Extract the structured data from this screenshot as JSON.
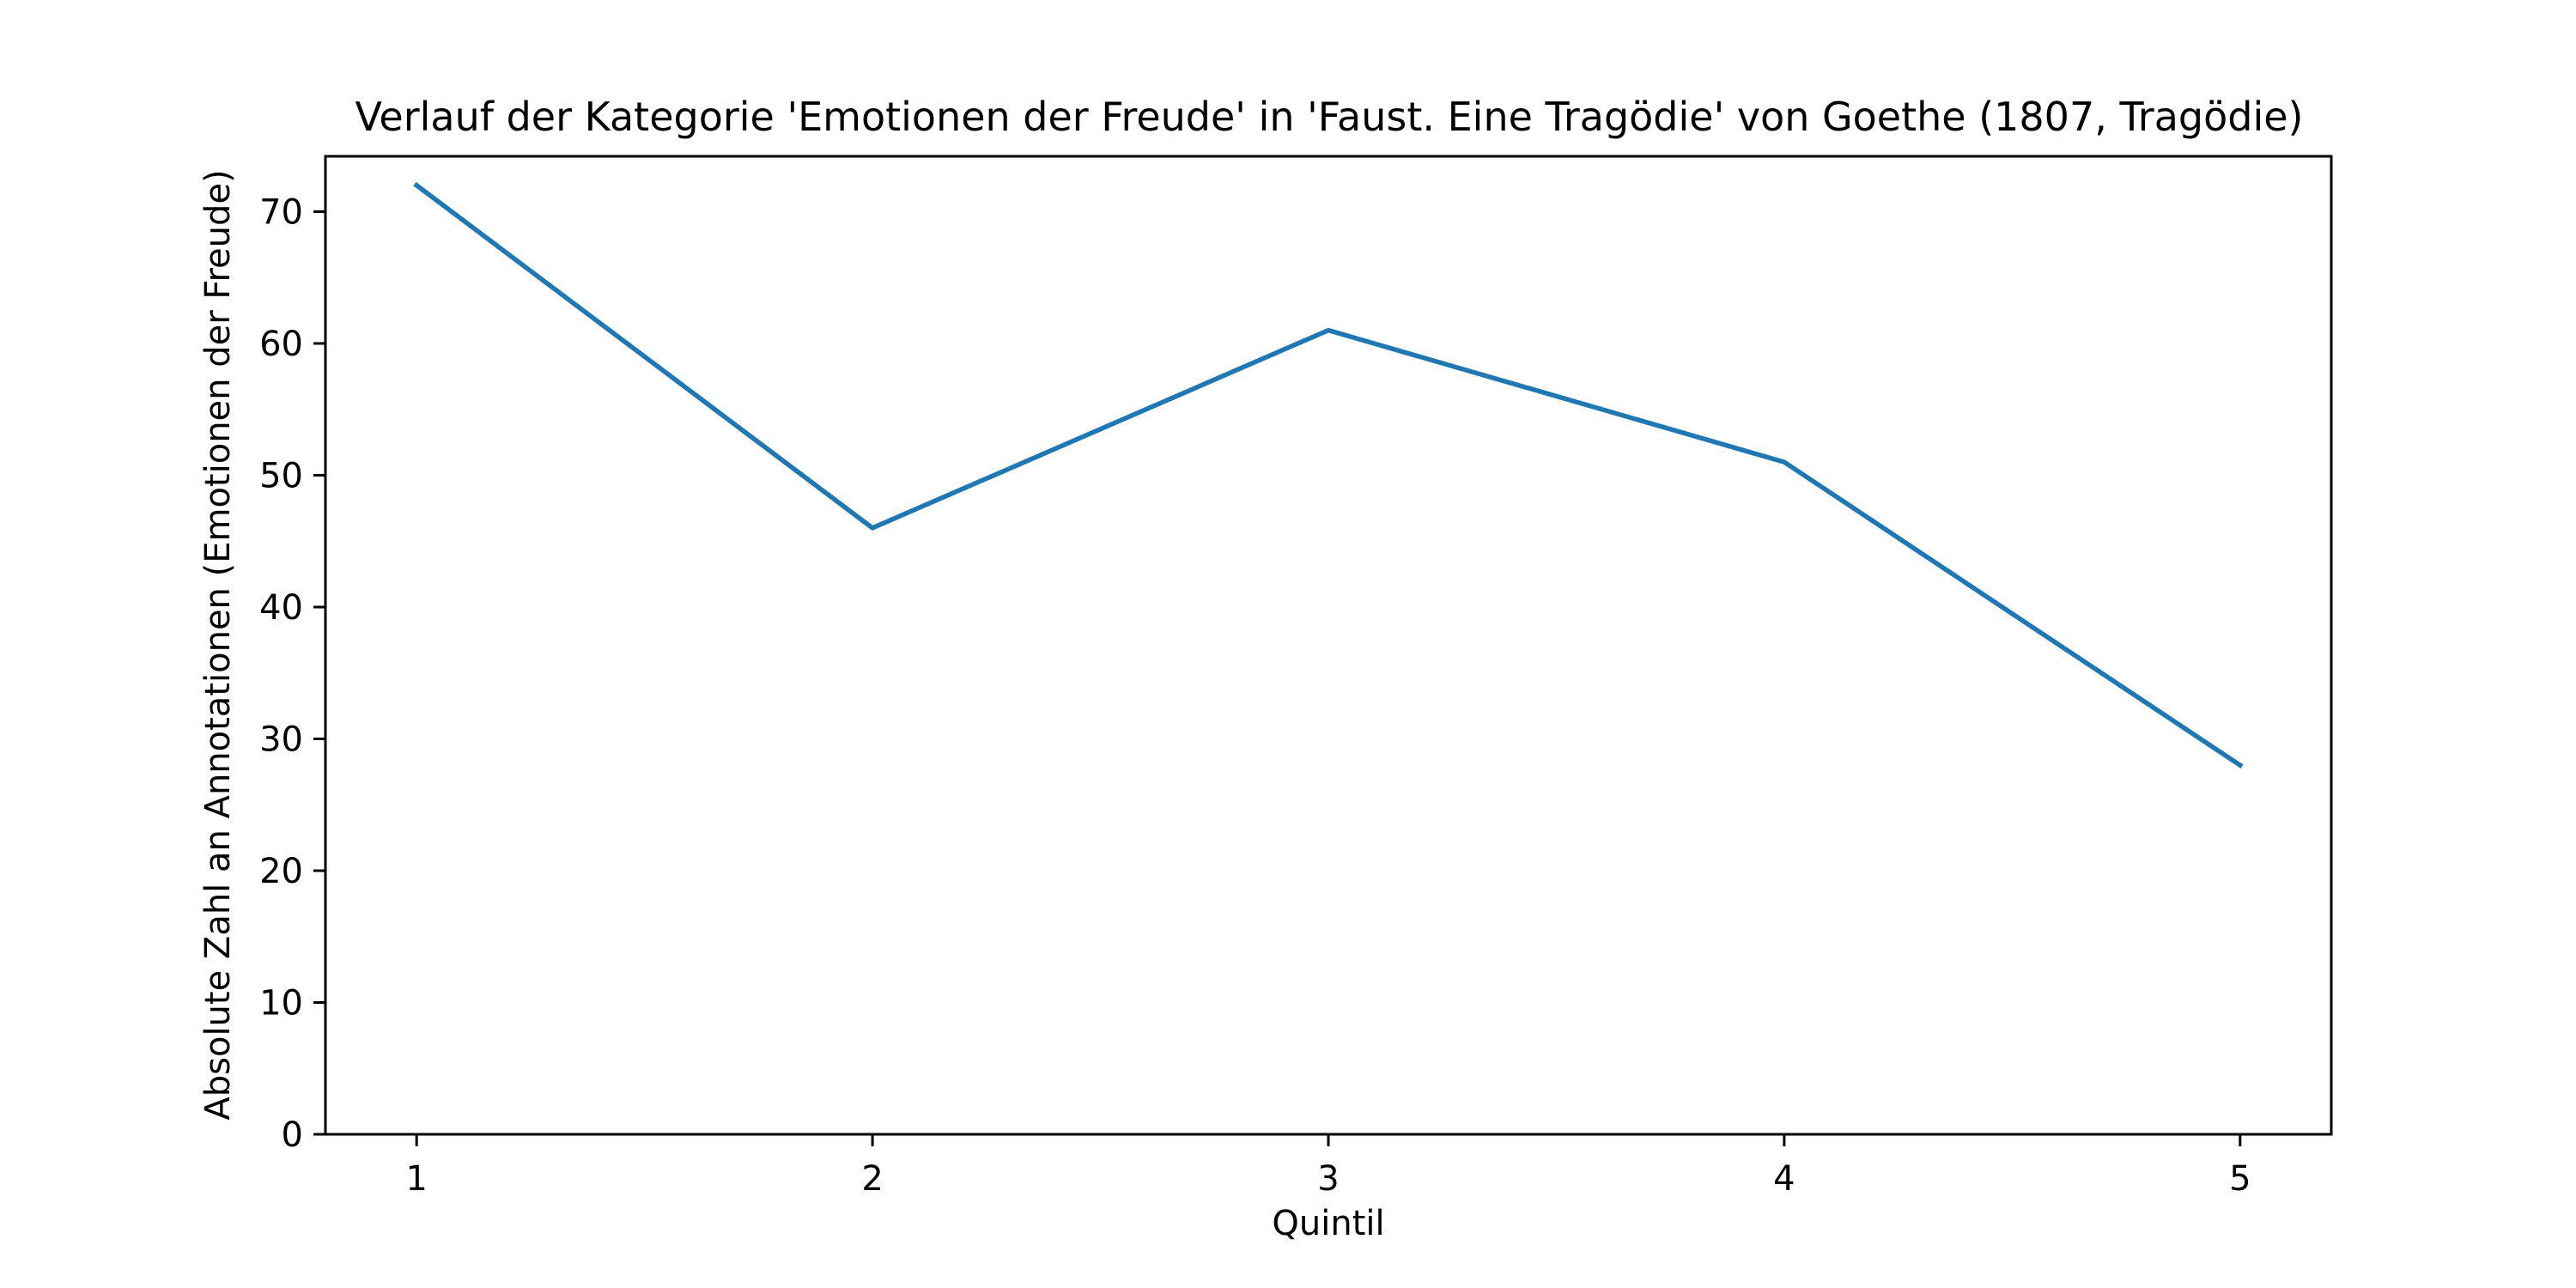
{
  "chart_data": {
    "type": "line",
    "title": "Verlauf der Kategorie 'Emotionen der Freude' in 'Faust. Eine Tragödie' von Goethe (1807, Tragödie)",
    "xlabel": "Quintil",
    "ylabel": "Absolute Zahl an Annotationen (Emotionen der Freude)",
    "x": [
      1,
      2,
      3,
      4,
      5
    ],
    "xticks": [
      1,
      2,
      3,
      4,
      5
    ],
    "series": [
      {
        "values": [
          72,
          46,
          61,
          51,
          28
        ],
        "color": "#1f77b4"
      }
    ],
    "xlim": [
      0.8,
      5.2
    ],
    "ylim": [
      0,
      74.2
    ],
    "yticks": [
      0,
      10,
      20,
      30,
      40,
      50,
      60,
      70
    ],
    "grid": false,
    "legend": "none"
  }
}
